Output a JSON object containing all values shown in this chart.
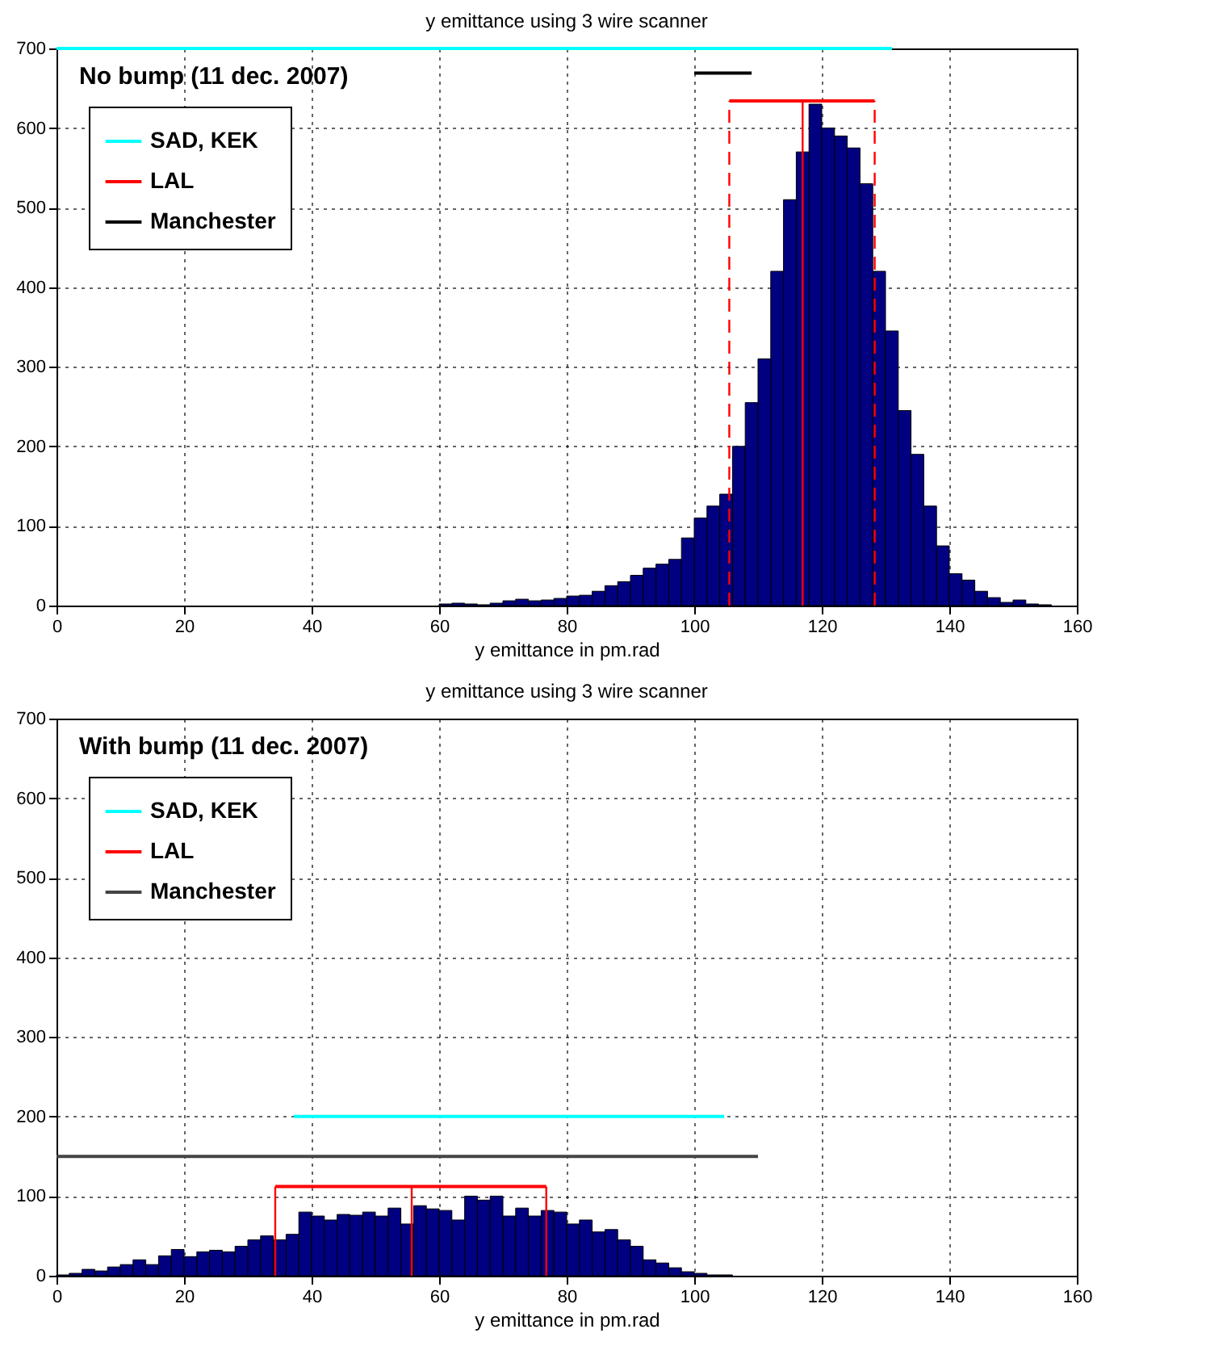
{
  "chart_data": [
    {
      "type": "histogram",
      "title": "y emittance using 3 wire scanner",
      "xlabel": "y emittance in pm.rad",
      "annotations": [
        "No bump (11 dec. 2007)"
      ],
      "bins": [
        60,
        62,
        64,
        66,
        68,
        70,
        72,
        74,
        76,
        78,
        80,
        82,
        84,
        86,
        88,
        90,
        92,
        94,
        96,
        98,
        100,
        102,
        104,
        106,
        108,
        110,
        112,
        114,
        116,
        118,
        120,
        122,
        124,
        126,
        128,
        130,
        132,
        134,
        136,
        138,
        140,
        142,
        144,
        146,
        148,
        150,
        152,
        154,
        156
      ],
      "xlim": [
        0,
        160
      ],
      "xticks": [
        0,
        20,
        40,
        60,
        80,
        100,
        120,
        140,
        160
      ],
      "ylim": [
        0,
        700
      ],
      "yticks": [
        0,
        100,
        200,
        300,
        400,
        500,
        600,
        700
      ],
      "grid": true,
      "legend": "top left",
      "series": [
        {
          "type": "histogram",
          "color": "#000080",
          "values": [
            2,
            3,
            2,
            1,
            3,
            6,
            8,
            6,
            7,
            9,
            12,
            13,
            18,
            25,
            30,
            38,
            47,
            52,
            58,
            85,
            110,
            125,
            140,
            200,
            255,
            310,
            420,
            510,
            570,
            630,
            600,
            590,
            575,
            530,
            420,
            345,
            245,
            190,
            125,
            75,
            40,
            32,
            18,
            10,
            4,
            7,
            2,
            1
          ]
        },
        {
          "type": "line",
          "color": "#ff0000",
          "line_style": "dashed",
          "x": [
            105.5,
            105.5
          ],
          "values": [
            0,
            634
          ]
        },
        {
          "type": "line",
          "color": "#ff0000",
          "line_style": "solid",
          "x": [
            117,
            117
          ],
          "values": [
            0,
            634
          ]
        },
        {
          "type": "line",
          "color": "#ff0000",
          "line_style": "dashed",
          "x": [
            128.3,
            128.3
          ],
          "values": [
            0,
            634
          ]
        },
        {
          "name": "SAD, KEK",
          "type": "line",
          "color": "#00ffff",
          "x": [
            0,
            131
          ],
          "values": [
            700,
            700
          ]
        },
        {
          "name": "LAL",
          "type": "line",
          "color": "#ff0000",
          "x": [
            105.5,
            128.3
          ],
          "values": [
            634,
            634
          ]
        },
        {
          "name": "Manchester",
          "type": "line",
          "color": "#000000",
          "x": [
            100,
            109
          ],
          "values": [
            669,
            669
          ]
        }
      ]
    },
    {
      "type": "histogram",
      "title": "y emittance using 3 wire scanner",
      "xlabel": "y emittance in pm.rad",
      "annotations": [
        "With bump (11 dec. 2007)"
      ],
      "bins": [
        0,
        2,
        4,
        6,
        8,
        10,
        12,
        14,
        16,
        18,
        20,
        22,
        24,
        26,
        28,
        30,
        32,
        34,
        36,
        38,
        40,
        42,
        44,
        46,
        48,
        50,
        52,
        54,
        56,
        58,
        60,
        62,
        64,
        66,
        68,
        70,
        72,
        74,
        76,
        78,
        80,
        82,
        84,
        86,
        88,
        90,
        92,
        94,
        96,
        98,
        100,
        102,
        104,
        106
      ],
      "xlim": [
        0,
        160
      ],
      "xticks": [
        0,
        20,
        40,
        60,
        80,
        100,
        120,
        140,
        160
      ],
      "ylim": [
        0,
        700
      ],
      "yticks": [
        0,
        100,
        200,
        300,
        400,
        500,
        600,
        700
      ],
      "grid": true,
      "legend": "top left",
      "series": [
        {
          "type": "histogram",
          "color": "#000080",
          "values": [
            1,
            3,
            8,
            6,
            11,
            14,
            20,
            14,
            25,
            33,
            24,
            30,
            32,
            30,
            37,
            45,
            50,
            45,
            52,
            80,
            75,
            70,
            77,
            76,
            80,
            75,
            85,
            65,
            88,
            84,
            82,
            70,
            100,
            95,
            100,
            75,
            85,
            75,
            82,
            80,
            65,
            70,
            55,
            58,
            45,
            37,
            20,
            16,
            10,
            5,
            3,
            1,
            1
          ]
        },
        {
          "type": "line",
          "color": "#ff0000",
          "line_style": "solid",
          "x": [
            34.3,
            34.3
          ],
          "values": [
            0,
            112
          ]
        },
        {
          "type": "line",
          "color": "#ff0000",
          "line_style": "solid",
          "x": [
            55.7,
            55.7
          ],
          "values": [
            0,
            112
          ]
        },
        {
          "type": "line",
          "color": "#ff0000",
          "line_style": "solid",
          "x": [
            76.8,
            76.8
          ],
          "values": [
            0,
            112
          ]
        },
        {
          "name": "SAD, KEK",
          "type": "line",
          "color": "#00ffff",
          "x": [
            37.2,
            104.7
          ],
          "values": [
            200,
            200
          ]
        },
        {
          "name": "LAL",
          "type": "line",
          "color": "#ff0000",
          "x": [
            34.3,
            76.8
          ],
          "values": [
            112,
            112
          ]
        },
        {
          "name": "Manchester",
          "type": "line",
          "color": "#444444",
          "x": [
            0,
            110
          ],
          "values": [
            150,
            150
          ]
        }
      ]
    }
  ]
}
